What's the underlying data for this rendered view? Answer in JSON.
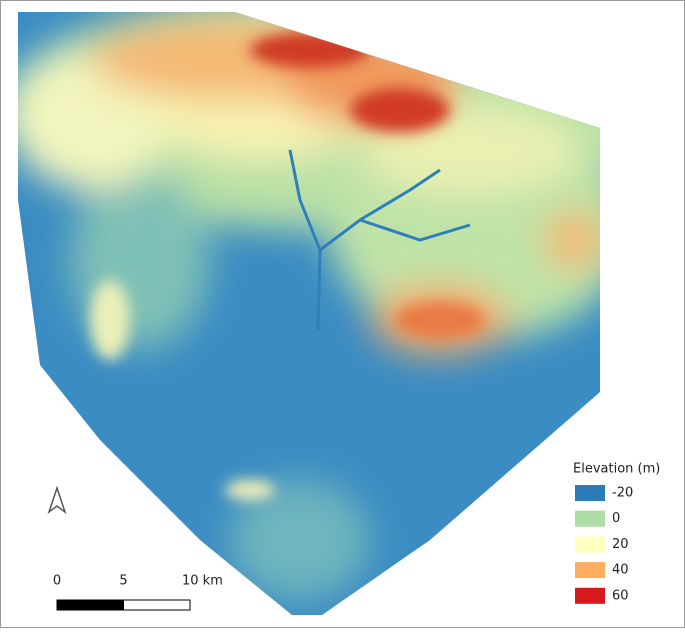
{
  "legend": {
    "title": "Elevation (m)",
    "items": [
      {
        "value": -20,
        "color": "#2c7bb6"
      },
      {
        "value": 0,
        "color": "#abdda4"
      },
      {
        "value": 20,
        "color": "#ffffbf"
      },
      {
        "value": 40,
        "color": "#fdae61"
      },
      {
        "value": 60,
        "color": "#d7191c"
      }
    ]
  },
  "scale_bar": {
    "ticks": [
      0,
      5,
      {
        "value": 10,
        "label": "10 km"
      }
    ]
  }
}
